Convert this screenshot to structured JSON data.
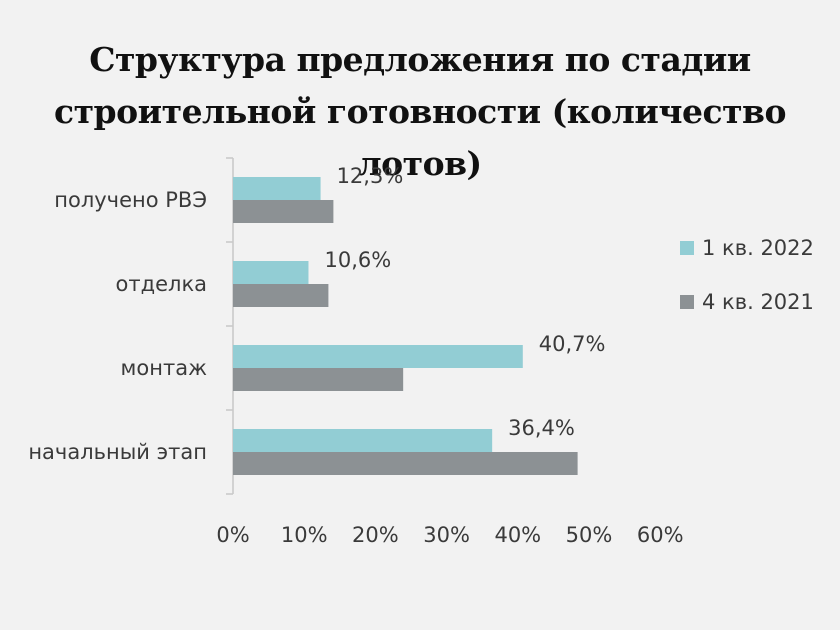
{
  "chart_data": {
    "type": "bar",
    "orientation": "horizontal",
    "title_lines": [
      "Структура предложения по стадии",
      "строительной готовности (количество лотов)"
    ],
    "categories": [
      "получено РВЭ",
      "отделка",
      "монтаж",
      "начальный этап"
    ],
    "series": [
      {
        "name": "1 кв. 2022",
        "color": "#92cdd4",
        "values": [
          12.3,
          10.6,
          40.7,
          36.4
        ],
        "labels": [
          "12,3%",
          "10,6%",
          "40,7%",
          "36,4%"
        ]
      },
      {
        "name": "4 кв. 2021",
        "color": "#8c9194",
        "values": [
          14.1,
          13.4,
          23.9,
          48.4
        ]
      }
    ],
    "xlim": [
      0,
      60
    ],
    "x_ticks": [
      0,
      10,
      20,
      30,
      40,
      50,
      60
    ],
    "x_tick_labels": [
      "0%",
      "10%",
      "20%",
      "30%",
      "40%",
      "50%",
      "60%"
    ],
    "grid": false,
    "legend_position": "right"
  }
}
